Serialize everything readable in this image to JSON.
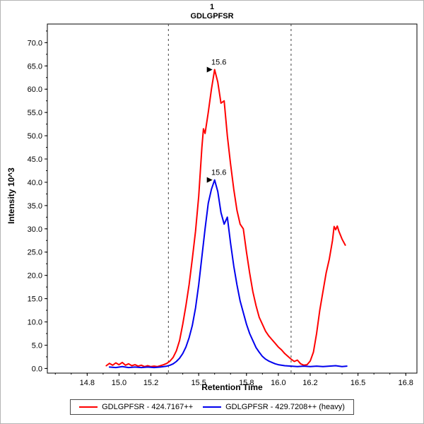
{
  "chart_data": {
    "type": "line",
    "title": "1",
    "subtitle": "GDLGPFSR",
    "xlabel": "Retention Time",
    "ylabel": "Intensity 10^3",
    "xlim": [
      14.55,
      16.87
    ],
    "ylim": [
      -1,
      74
    ],
    "x_ticks": [
      14.8,
      15.0,
      15.2,
      15.5,
      15.8,
      16.0,
      16.2,
      16.5,
      16.8
    ],
    "y_ticks": [
      0,
      5,
      10,
      15,
      20,
      25,
      30,
      35,
      40,
      45,
      50,
      55,
      60,
      65,
      70
    ],
    "grid": false,
    "legend_position": "bottom",
    "integration_boundaries": [
      15.31,
      16.08
    ],
    "boundary_line_style": "dashed",
    "annotations": [
      {
        "text": "15.6",
        "x": 15.6,
        "y": 64.2,
        "color": "#cc0000"
      },
      {
        "text": "15.6",
        "x": 15.6,
        "y": 40.5,
        "color": "#0000bb"
      }
    ],
    "series": [
      {
        "name": "GDLGPFSR - 424.7167++",
        "color": "#ff0000",
        "points": [
          [
            14.92,
            0.6
          ],
          [
            14.94,
            1.1
          ],
          [
            14.96,
            0.7
          ],
          [
            14.98,
            1.2
          ],
          [
            15.0,
            0.8
          ],
          [
            15.02,
            1.3
          ],
          [
            15.04,
            0.7
          ],
          [
            15.06,
            1.0
          ],
          [
            15.08,
            0.6
          ],
          [
            15.1,
            0.8
          ],
          [
            15.12,
            0.5
          ],
          [
            15.14,
            0.7
          ],
          [
            15.16,
            0.4
          ],
          [
            15.18,
            0.6
          ],
          [
            15.2,
            0.4
          ],
          [
            15.22,
            0.5
          ],
          [
            15.24,
            0.4
          ],
          [
            15.26,
            0.6
          ],
          [
            15.28,
            0.8
          ],
          [
            15.3,
            1.1
          ],
          [
            15.32,
            1.6
          ],
          [
            15.34,
            2.4
          ],
          [
            15.36,
            3.8
          ],
          [
            15.38,
            6.0
          ],
          [
            15.4,
            9.5
          ],
          [
            15.42,
            13.5
          ],
          [
            15.44,
            18.0
          ],
          [
            15.46,
            23.5
          ],
          [
            15.48,
            29.5
          ],
          [
            15.5,
            37.0
          ],
          [
            15.52,
            47.5
          ],
          [
            15.53,
            51.5
          ],
          [
            15.54,
            50.5
          ],
          [
            15.56,
            55.0
          ],
          [
            15.58,
            60.0
          ],
          [
            15.6,
            64.2
          ],
          [
            15.62,
            61.5
          ],
          [
            15.64,
            57.0
          ],
          [
            15.66,
            57.5
          ],
          [
            15.68,
            50.0
          ],
          [
            15.7,
            44.0
          ],
          [
            15.72,
            38.5
          ],
          [
            15.74,
            34.0
          ],
          [
            15.76,
            31.0
          ],
          [
            15.78,
            30.0
          ],
          [
            15.8,
            25.0
          ],
          [
            15.82,
            20.5
          ],
          [
            15.84,
            16.5
          ],
          [
            15.86,
            13.5
          ],
          [
            15.88,
            11.0
          ],
          [
            15.9,
            9.5
          ],
          [
            15.92,
            8.0
          ],
          [
            15.94,
            7.0
          ],
          [
            15.96,
            6.2
          ],
          [
            15.98,
            5.4
          ],
          [
            16.0,
            4.6
          ],
          [
            16.02,
            4.0
          ],
          [
            16.04,
            3.2
          ],
          [
            16.06,
            2.6
          ],
          [
            16.08,
            2.0
          ],
          [
            16.1,
            1.5
          ],
          [
            16.12,
            1.8
          ],
          [
            16.14,
            1.0
          ],
          [
            16.16,
            0.7
          ],
          [
            16.18,
            0.8
          ],
          [
            16.2,
            1.6
          ],
          [
            16.22,
            3.5
          ],
          [
            16.24,
            7.5
          ],
          [
            16.26,
            12.5
          ],
          [
            16.28,
            16.5
          ],
          [
            16.3,
            20.5
          ],
          [
            16.32,
            23.5
          ],
          [
            16.34,
            27.5
          ],
          [
            16.35,
            30.5
          ],
          [
            16.36,
            29.8
          ],
          [
            16.37,
            30.6
          ],
          [
            16.38,
            29.5
          ],
          [
            16.4,
            27.8
          ],
          [
            16.42,
            26.5
          ]
        ]
      },
      {
        "name": "GDLGPFSR - 429.7208++ (heavy)",
        "color": "#0000ee",
        "points": [
          [
            14.94,
            0.3
          ],
          [
            14.98,
            0.2
          ],
          [
            15.02,
            0.4
          ],
          [
            15.06,
            0.2
          ],
          [
            15.1,
            0.3
          ],
          [
            15.14,
            0.2
          ],
          [
            15.18,
            0.3
          ],
          [
            15.22,
            0.2
          ],
          [
            15.26,
            0.3
          ],
          [
            15.3,
            0.5
          ],
          [
            15.32,
            0.7
          ],
          [
            15.34,
            1.0
          ],
          [
            15.36,
            1.5
          ],
          [
            15.38,
            2.2
          ],
          [
            15.4,
            3.2
          ],
          [
            15.42,
            4.6
          ],
          [
            15.44,
            6.6
          ],
          [
            15.46,
            9.2
          ],
          [
            15.48,
            13.0
          ],
          [
            15.5,
            18.0
          ],
          [
            15.52,
            24.0
          ],
          [
            15.54,
            30.0
          ],
          [
            15.56,
            35.5
          ],
          [
            15.58,
            38.5
          ],
          [
            15.6,
            40.5
          ],
          [
            15.62,
            38.0
          ],
          [
            15.64,
            33.5
          ],
          [
            15.66,
            31.0
          ],
          [
            15.68,
            32.5
          ],
          [
            15.7,
            27.0
          ],
          [
            15.72,
            22.0
          ],
          [
            15.74,
            18.0
          ],
          [
            15.76,
            14.5
          ],
          [
            15.78,
            12.0
          ],
          [
            15.8,
            9.5
          ],
          [
            15.82,
            7.5
          ],
          [
            15.84,
            6.0
          ],
          [
            15.86,
            4.5
          ],
          [
            15.88,
            3.5
          ],
          [
            15.9,
            2.6
          ],
          [
            15.92,
            2.0
          ],
          [
            15.94,
            1.6
          ],
          [
            15.96,
            1.3
          ],
          [
            15.98,
            1.0
          ],
          [
            16.0,
            0.8
          ],
          [
            16.04,
            0.6
          ],
          [
            16.08,
            0.5
          ],
          [
            16.12,
            0.4
          ],
          [
            16.16,
            0.5
          ],
          [
            16.2,
            0.4
          ],
          [
            16.24,
            0.5
          ],
          [
            16.28,
            0.4
          ],
          [
            16.32,
            0.5
          ],
          [
            16.36,
            0.6
          ],
          [
            16.4,
            0.4
          ],
          [
            16.43,
            0.5
          ]
        ]
      }
    ]
  }
}
